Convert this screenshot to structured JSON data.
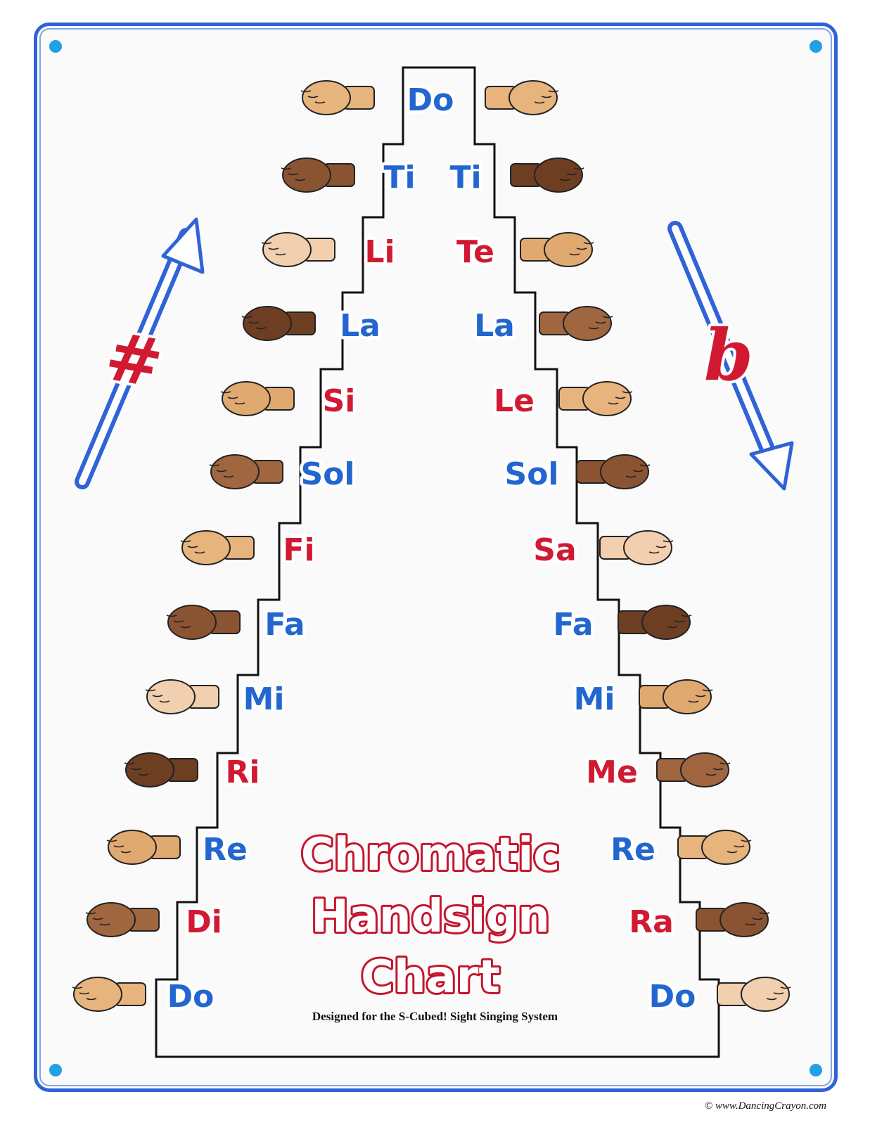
{
  "title_lines": [
    "Chromatic",
    "Handsign",
    "Chart"
  ],
  "subtitle": "Designed for the S-Cubed! Sight Singing System",
  "copyright": "© www.DancingCrayon.com",
  "symbols": {
    "sharp": "#",
    "flat": "b"
  },
  "colors": {
    "frame": "#2f63d6",
    "natural": "#2266d0",
    "altered": "#d11a32",
    "dot": "#21a0e6"
  },
  "left_column": [
    {
      "label": "Do",
      "color": "natural",
      "hand_icon": "fist-hand-icon"
    },
    {
      "label": "Ti",
      "color": "natural",
      "hand_icon": "pointing-up-hand-icon"
    },
    {
      "label": "Li",
      "color": "altered",
      "hand_icon": "cupped-hand-icon"
    },
    {
      "label": "La",
      "color": "natural",
      "hand_icon": "drooping-hand-icon"
    },
    {
      "label": "Si",
      "color": "altered",
      "hand_icon": "raised-palm-hand-icon"
    },
    {
      "label": "Sol",
      "color": "natural",
      "hand_icon": "flat-palm-hand-icon"
    },
    {
      "label": "Fi",
      "color": "altered",
      "hand_icon": "thumb-out-hand-icon"
    },
    {
      "label": "Fa",
      "color": "natural",
      "hand_icon": "thumb-down-hand-icon"
    },
    {
      "label": "Mi",
      "color": "natural",
      "hand_icon": "flat-horizontal-hand-icon"
    },
    {
      "label": "Ri",
      "color": "altered",
      "hand_icon": "tilted-palm-hand-icon"
    },
    {
      "label": "Re",
      "color": "natural",
      "hand_icon": "slanted-hand-icon"
    },
    {
      "label": "Di",
      "color": "altered",
      "hand_icon": "fist-hand-icon"
    },
    {
      "label": "Do",
      "color": "natural",
      "hand_icon": "fist-hand-icon"
    }
  ],
  "right_column": [
    {
      "label": "Do",
      "color": "natural",
      "hand_icon": "fist-hand-icon"
    },
    {
      "label": "Ti",
      "color": "natural",
      "hand_icon": "pointing-up-hand-icon"
    },
    {
      "label": "Te",
      "color": "altered",
      "hand_icon": "cupped-hand-icon"
    },
    {
      "label": "La",
      "color": "natural",
      "hand_icon": "drooping-hand-icon"
    },
    {
      "label": "Le",
      "color": "altered",
      "hand_icon": "open-palm-hand-icon"
    },
    {
      "label": "Sol",
      "color": "natural",
      "hand_icon": "flat-palm-hand-icon"
    },
    {
      "label": "Sa",
      "color": "altered",
      "hand_icon": "open-palm-hand-icon"
    },
    {
      "label": "Fa",
      "color": "natural",
      "hand_icon": "thumb-down-hand-icon"
    },
    {
      "label": "Mi",
      "color": "natural",
      "hand_icon": "flat-horizontal-hand-icon"
    },
    {
      "label": "Me",
      "color": "altered",
      "hand_icon": "palm-down-hand-icon"
    },
    {
      "label": "Re",
      "color": "natural",
      "hand_icon": "slanted-hand-icon"
    },
    {
      "label": "Ra",
      "color": "altered",
      "hand_icon": "hooked-hand-icon"
    },
    {
      "label": "Do",
      "color": "natural",
      "hand_icon": "fist-hand-icon"
    }
  ]
}
